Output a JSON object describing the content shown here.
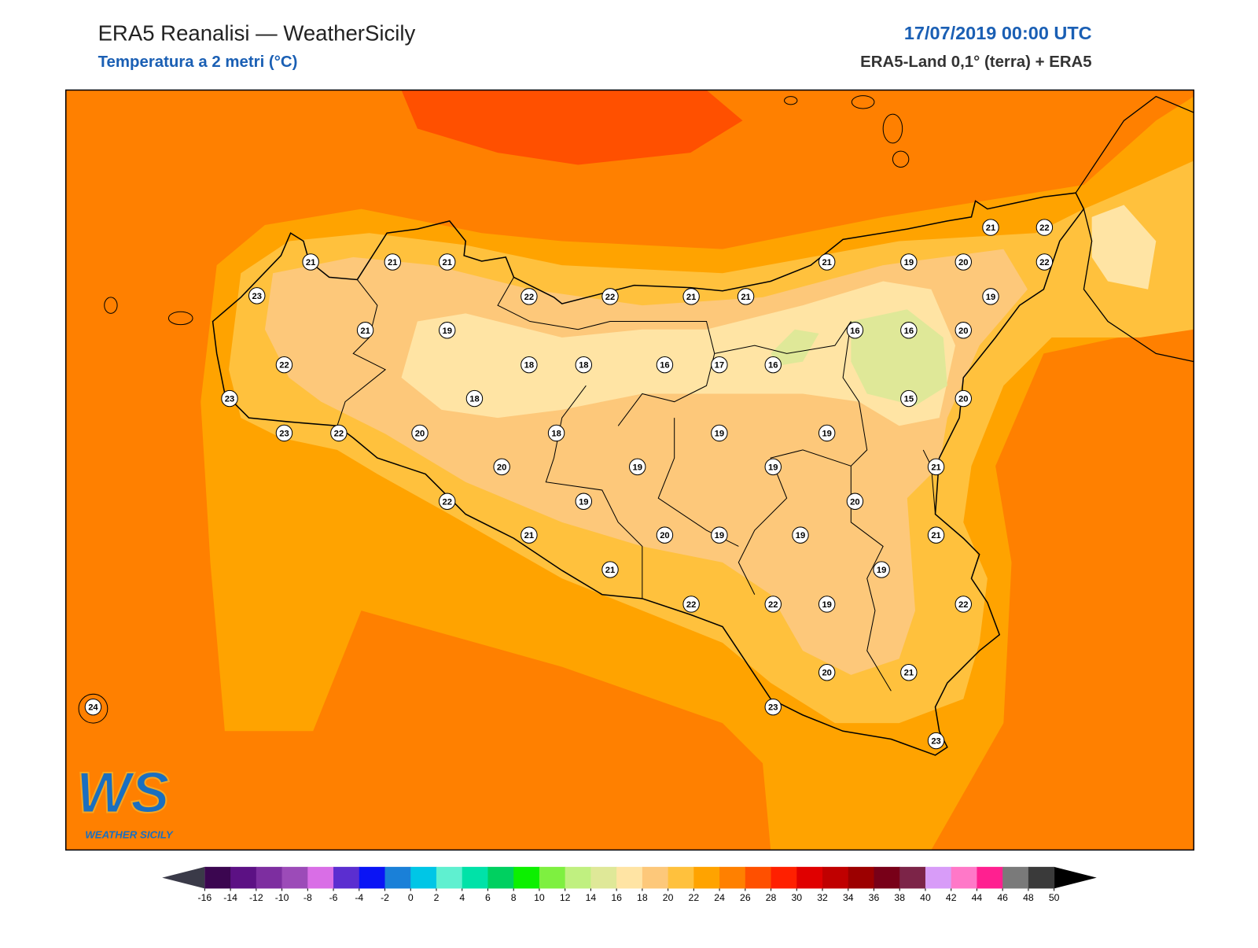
{
  "header": {
    "title": "ERA5 Reanalisi — WeatherSicily",
    "subtitle": "Temperatura a 2 metri (°C)",
    "datetime": "17/07/2019 00:00 UTC",
    "source": "ERA5-Land 0,1° (terra) + ERA5"
  },
  "map": {
    "station_values": [
      21,
      21,
      21,
      23,
      21,
      19,
      22,
      23,
      23,
      22,
      22,
      22,
      21,
      21,
      21,
      19,
      20,
      21,
      22,
      22,
      19,
      16,
      16,
      20,
      18,
      18,
      16,
      17,
      16,
      18,
      15,
      20,
      20,
      18,
      19,
      19,
      20,
      19,
      19,
      21,
      22,
      19,
      20,
      21,
      20,
      19,
      19,
      21,
      21,
      19,
      22,
      22,
      19,
      22,
      20,
      21,
      24,
      23,
      23
    ]
  },
  "colorbar": {
    "ticks": [
      -16,
      -14,
      -12,
      -10,
      -8,
      -6,
      -4,
      -2,
      0,
      2,
      4,
      6,
      8,
      10,
      12,
      14,
      16,
      18,
      20,
      22,
      24,
      26,
      28,
      30,
      32,
      34,
      36,
      38,
      40,
      42,
      44,
      46,
      48,
      50
    ],
    "colors": [
      "#3b0650",
      "#5c1184",
      "#7d2ea0",
      "#9c4bb8",
      "#d96ee6",
      "#5b2ed0",
      "#0a14f5",
      "#1a80d8",
      "#00c6e6",
      "#5ff0d0",
      "#00e2a8",
      "#00d060",
      "#0cf000",
      "#7ef040",
      "#c0f080",
      "#dfe898",
      "#ffe4a4",
      "#fdc87a",
      "#ffc13d",
      "#ffa300",
      "#ff8000",
      "#ff5000",
      "#ff2000",
      "#e00000",
      "#c00000",
      "#9c0000",
      "#780018",
      "#7c2448",
      "#d89cf8",
      "#ff78c8",
      "#ff2090",
      "#7a7a7a",
      "#3a3a3a"
    ],
    "extend_low_color": "#3a3a48",
    "extend_high_color": "#000000"
  },
  "logo": {
    "mark": "WS",
    "name": "WEATHER SICILY"
  }
}
